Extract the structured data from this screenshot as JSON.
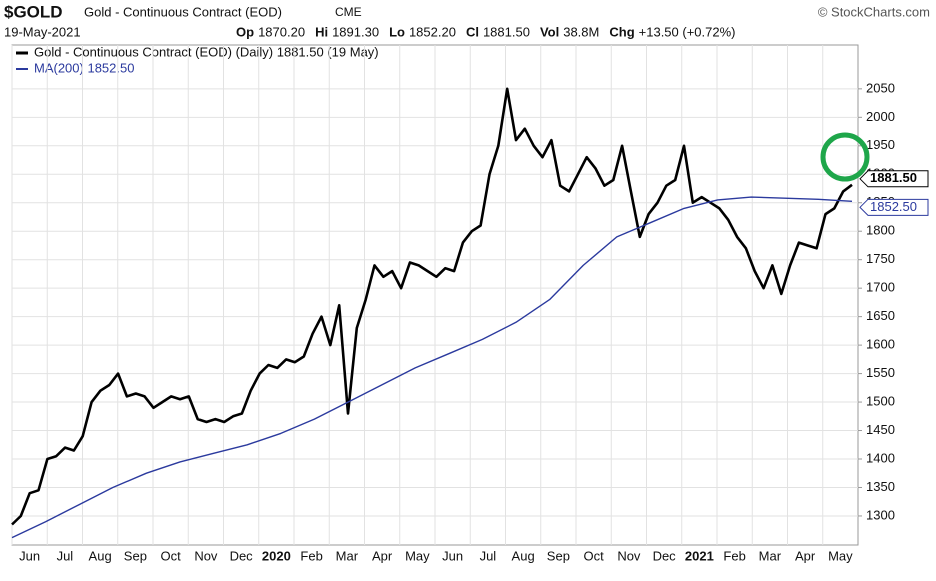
{
  "header": {
    "symbol": "$GOLD",
    "name": "Gold - Continuous Contract (EOD)",
    "exchange": "CME",
    "date": "19-May-2021",
    "credit": "© StockCharts.com",
    "stats": [
      {
        "label": "Op",
        "value": "1870.20"
      },
      {
        "label": "Hi",
        "value": "1891.30"
      },
      {
        "label": "Lo",
        "value": "1852.20"
      },
      {
        "label": "Cl",
        "value": "1881.50"
      },
      {
        "label": "Vol",
        "value": "38.8M"
      },
      {
        "label": "Chg",
        "value": "+13.50 (+0.72%)"
      }
    ]
  },
  "chart_data": {
    "type": "line",
    "series": [
      {
        "name": "Gold - Continuous Contract (EOD) (Daily) 1881.50 (19 May)",
        "color": "#000000",
        "last_label": "1881.50",
        "values": [
          1285,
          1300,
          1340,
          1345,
          1400,
          1405,
          1420,
          1415,
          1440,
          1500,
          1520,
          1530,
          1550,
          1510,
          1515,
          1510,
          1490,
          1500,
          1510,
          1505,
          1510,
          1470,
          1465,
          1470,
          1465,
          1475,
          1480,
          1520,
          1550,
          1565,
          1560,
          1575,
          1570,
          1580,
          1620,
          1650,
          1600,
          1670,
          1480,
          1630,
          1680,
          1740,
          1720,
          1730,
          1700,
          1745,
          1740,
          1730,
          1720,
          1735,
          1730,
          1780,
          1800,
          1810,
          1900,
          1950,
          2050,
          1960,
          1980,
          1950,
          1930,
          1960,
          1880,
          1870,
          1900,
          1930,
          1910,
          1880,
          1890,
          1950,
          1870,
          1790,
          1830,
          1850,
          1880,
          1890,
          1950,
          1850,
          1860,
          1850,
          1840,
          1820,
          1790,
          1770,
          1730,
          1700,
          1740,
          1690,
          1740,
          1780,
          1775,
          1770,
          1830,
          1840,
          1870,
          1881.5
        ]
      },
      {
        "name": "MA(200) 1852.50",
        "color": "#2b3a9e",
        "last_label": "1852.50",
        "values": [
          1262,
          1290,
          1320,
          1350,
          1375,
          1395,
          1410,
          1425,
          1445,
          1470,
          1500,
          1530,
          1560,
          1585,
          1610,
          1640,
          1680,
          1740,
          1790,
          1815,
          1840,
          1855,
          1860,
          1858,
          1856,
          1852.5
        ]
      }
    ],
    "xtick_labels": [
      "Jun",
      "Jul",
      "Aug",
      "Sep",
      "Oct",
      "Nov",
      "Dec",
      "2020",
      "Feb",
      "Mar",
      "Apr",
      "May",
      "Jun",
      "Jul",
      "Aug",
      "Sep",
      "Oct",
      "Nov",
      "Dec",
      "2021",
      "Feb",
      "Mar",
      "Apr",
      "May"
    ],
    "ylim": [
      1249,
      2127
    ],
    "yticks": [
      1300,
      1350,
      1400,
      1450,
      1500,
      1550,
      1600,
      1650,
      1700,
      1750,
      1800,
      1850,
      1900,
      1950,
      2000,
      2050
    ],
    "grid": true
  }
}
